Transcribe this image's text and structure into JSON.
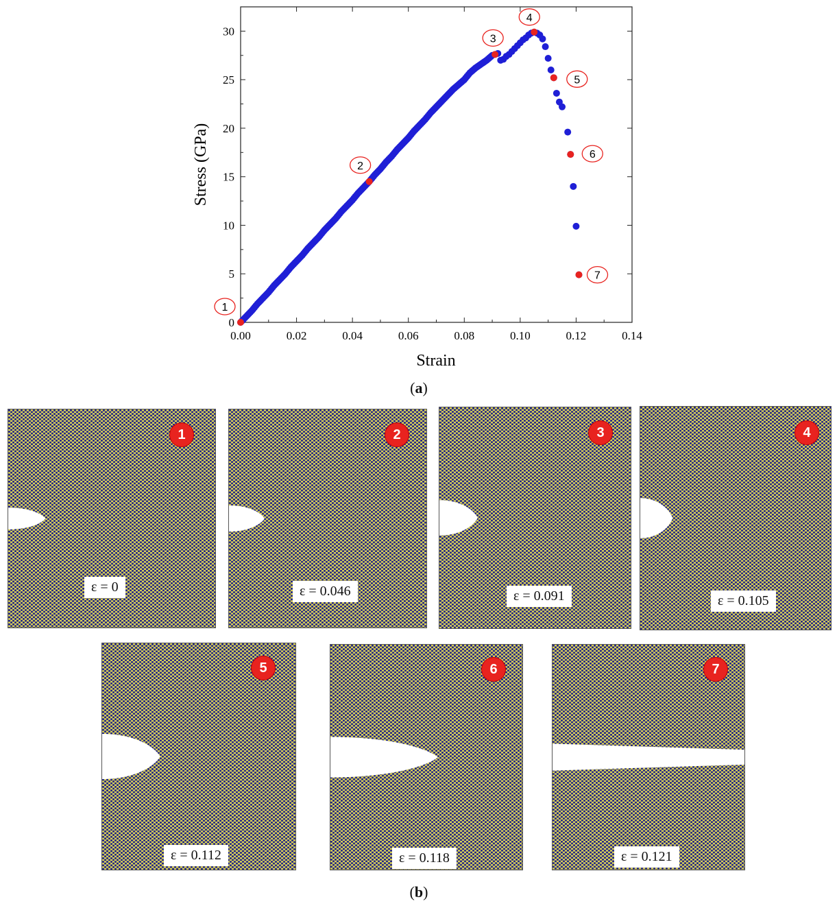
{
  "chart_data": {
    "type": "scatter",
    "xlabel": "Strain",
    "ylabel": "Stress (GPa)",
    "xlim": [
      0.0,
      0.14
    ],
    "ylim": [
      0,
      32.5
    ],
    "xticks": [
      "0.00",
      "0.02",
      "0.04",
      "0.06",
      "0.08",
      "0.10",
      "0.12",
      "0.14"
    ],
    "yticks": [
      "0",
      "5",
      "10",
      "15",
      "20",
      "25",
      "30"
    ],
    "grid": false,
    "series": [
      {
        "name": "stress-strain",
        "color": "#1f1fd6",
        "x": [
          0.0,
          0.002,
          0.004,
          0.006,
          0.008,
          0.01,
          0.012,
          0.014,
          0.016,
          0.018,
          0.02,
          0.022,
          0.024,
          0.026,
          0.028,
          0.03,
          0.032,
          0.034,
          0.036,
          0.038,
          0.04,
          0.042,
          0.044,
          0.046,
          0.048,
          0.05,
          0.052,
          0.054,
          0.056,
          0.058,
          0.06,
          0.062,
          0.064,
          0.066,
          0.068,
          0.07,
          0.072,
          0.074,
          0.076,
          0.078,
          0.08,
          0.082,
          0.084,
          0.086,
          0.088,
          0.09,
          0.091,
          0.092,
          0.093,
          0.094,
          0.095,
          0.096,
          0.097,
          0.098,
          0.099,
          0.1,
          0.101,
          0.102,
          0.103,
          0.104,
          0.105,
          0.106,
          0.107,
          0.108,
          0.109,
          0.11,
          0.111,
          0.112,
          0.113,
          0.114,
          0.115,
          0.117,
          0.118,
          0.119,
          0.12,
          0.121
        ],
        "y": [
          0.0,
          0.6,
          1.2,
          1.9,
          2.5,
          3.1,
          3.8,
          4.4,
          5.0,
          5.7,
          6.3,
          6.9,
          7.6,
          8.2,
          8.8,
          9.5,
          10.1,
          10.7,
          11.4,
          12.0,
          12.6,
          13.3,
          13.9,
          14.5,
          15.2,
          15.8,
          16.5,
          17.1,
          17.8,
          18.4,
          19.0,
          19.7,
          20.3,
          20.9,
          21.6,
          22.2,
          22.8,
          23.4,
          24.0,
          24.5,
          25.0,
          25.7,
          26.2,
          26.6,
          27.0,
          27.5,
          27.6,
          27.7,
          27.0,
          27.1,
          27.4,
          27.6,
          27.9,
          28.2,
          28.5,
          28.8,
          29.1,
          29.3,
          29.6,
          29.8,
          29.9,
          29.8,
          29.6,
          29.2,
          28.4,
          27.2,
          26.0,
          25.2,
          23.6,
          22.7,
          22.2,
          19.6,
          17.3,
          14.0,
          9.9,
          4.9
        ]
      }
    ],
    "highlighted_points": [
      {
        "label": "1",
        "x": 0.0,
        "y": 0.0
      },
      {
        "label": "2",
        "x": 0.046,
        "y": 14.5
      },
      {
        "label": "3",
        "x": 0.091,
        "y": 27.6
      },
      {
        "label": "4",
        "x": 0.105,
        "y": 29.9
      },
      {
        "label": "5",
        "x": 0.112,
        "y": 25.2
      },
      {
        "label": "6",
        "x": 0.118,
        "y": 17.3
      },
      {
        "label": "7",
        "x": 0.121,
        "y": 4.9
      }
    ]
  },
  "colors": {
    "series": "#1f1fd6",
    "highlight": "#e8231f",
    "atom_yellow": "#d8cf55",
    "atom_blue": "#1b1f8a"
  },
  "captions": {
    "a": "a",
    "b": "b"
  },
  "snapshots": [
    {
      "label": "1",
      "strain_text": "ε = 0",
      "crack_length": 0.18,
      "crack_half_open": 0.05
    },
    {
      "label": "2",
      "strain_text": "ε = 0.046",
      "crack_length": 0.18,
      "crack_half_open": 0.06
    },
    {
      "label": "3",
      "strain_text": "ε = 0.091",
      "crack_length": 0.2,
      "crack_half_open": 0.08
    },
    {
      "label": "4",
      "strain_text": "ε = 0.105",
      "crack_length": 0.17,
      "crack_half_open": 0.09
    },
    {
      "label": "5",
      "strain_text": "ε = 0.112",
      "crack_length": 0.3,
      "crack_half_open": 0.1
    },
    {
      "label": "6",
      "strain_text": "ε = 0.118",
      "crack_length": 0.56,
      "crack_half_open": 0.09
    },
    {
      "label": "7",
      "strain_text": "ε = 0.121",
      "crack_length": 1.0,
      "crack_half_open": 0.06
    }
  ]
}
